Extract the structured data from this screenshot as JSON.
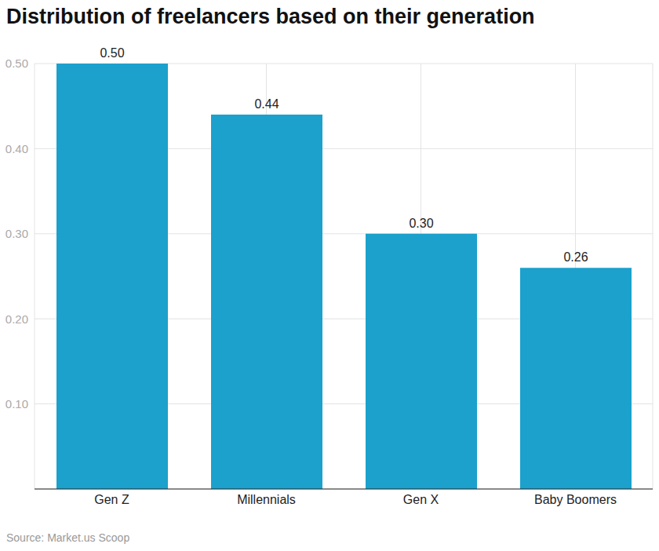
{
  "chart_data": {
    "type": "bar",
    "title": "Distribution of freelancers based on their generation",
    "source": "Source: Market.us Scoop",
    "categories": [
      "Gen Z",
      "Millennials",
      "Gen X",
      "Baby Boomers"
    ],
    "values": [
      0.5,
      0.44,
      0.3,
      0.26
    ],
    "value_labels": [
      "0.50",
      "0.44",
      "0.30",
      "0.26"
    ],
    "data_labels": true,
    "color": "#1ba1cc",
    "ylim": [
      0,
      0.5
    ],
    "yticks": [
      {
        "value": 0.1,
        "label": "0.10"
      },
      {
        "value": 0.2,
        "label": "0.20"
      },
      {
        "value": 0.3,
        "label": "0.30"
      },
      {
        "value": 0.4,
        "label": "0.40"
      },
      {
        "value": 0.5,
        "label": "0.50"
      }
    ],
    "grid": true
  }
}
